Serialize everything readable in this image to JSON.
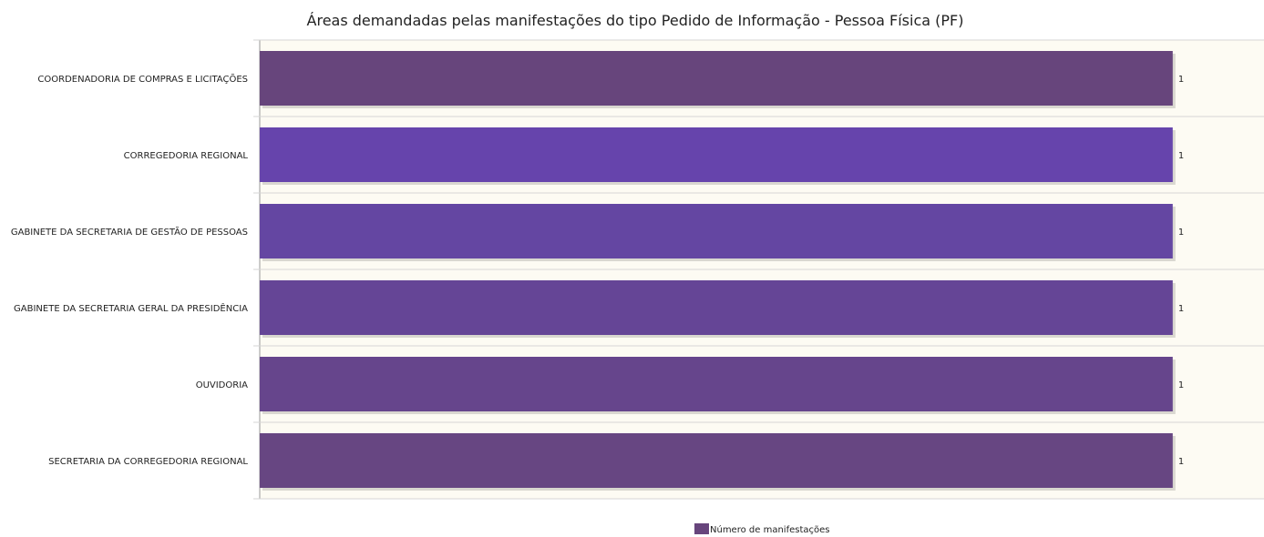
{
  "chart_data": {
    "type": "bar",
    "orientation": "horizontal",
    "title": "Áreas demandadas pelas manifestações do tipo Pedido de Informação - Pessoa Física (PF)",
    "categories": [
      "COORDENADORIA DE COMPRAS E LICITAÇÕES",
      "CORREGEDORIA REGIONAL",
      "GABINETE DA SECRETARIA DE GESTÃO DE PESSOAS",
      "GABINETE DA SECRETARIA GERAL DA PRESIDÊNCIA",
      "OUVIDORIA",
      "SECRETARIA DA CORREGEDORIA REGIONAL"
    ],
    "series": [
      {
        "name": "Número de manifestações",
        "values": [
          1,
          1,
          1,
          1,
          1,
          1
        ],
        "data_labels": [
          "1",
          "1",
          "1",
          "1",
          "1",
          "1"
        ]
      }
    ],
    "xlim": [
      0,
      1.1
    ],
    "bar_colors": [
      "#67457c",
      "#6644ac",
      "#6446a2",
      "#654596",
      "#66458c",
      "#674682"
    ],
    "plot_background": "#fdfbf3",
    "grid": "horizontal separators",
    "legend_position": "bottom-center",
    "legend_color": "#67457c"
  }
}
